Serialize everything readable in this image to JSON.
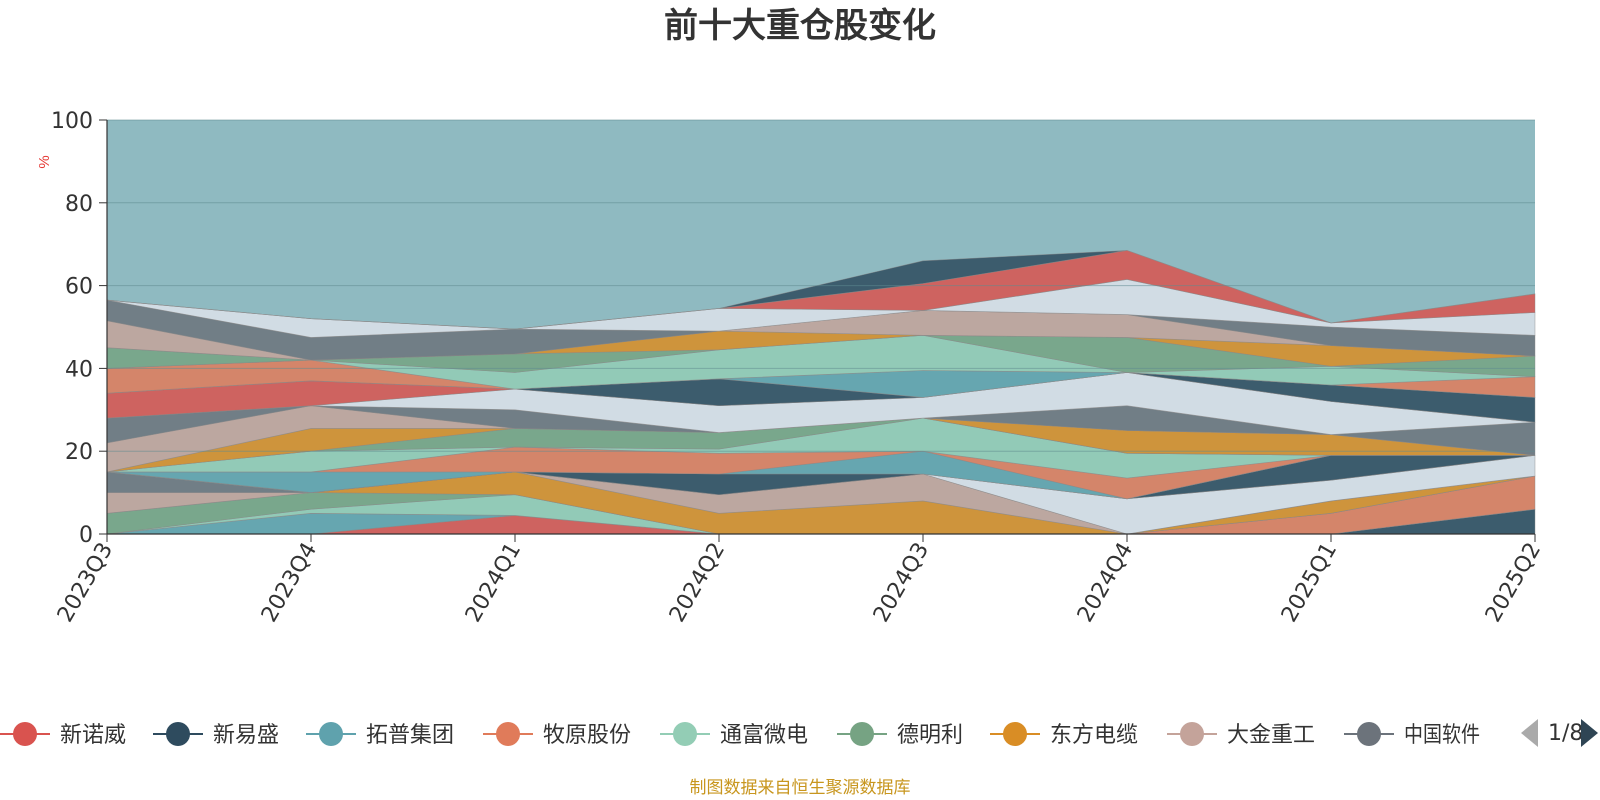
{
  "chart_data": {
    "type": "area",
    "title": "前十大重仓股变化",
    "ylabel": "%",
    "ylim": [
      0,
      100
    ],
    "yticks": [
      0,
      20,
      40,
      60,
      80,
      100
    ],
    "categories": [
      "2023Q3",
      "2023Q4",
      "2024Q1",
      "2024Q2",
      "2024Q3",
      "2024Q4",
      "2025Q1",
      "2025Q2"
    ],
    "stacked": true,
    "grid": true,
    "legend_position": "bottom",
    "series": [
      {
        "name": "新诺威",
        "color": "#d9534f",
        "values": [
          0,
          0,
          4.5,
          0,
          0,
          0,
          0,
          0
        ]
      },
      {
        "name": "新易盛",
        "color": "#2e4b5e",
        "values": [
          0,
          0,
          0,
          0,
          0,
          0,
          0,
          6
        ]
      },
      {
        "name": "拓普集团",
        "color": "#5fa2ad",
        "values": [
          0,
          5,
          0,
          0,
          0,
          0,
          0,
          0
        ]
      },
      {
        "name": "牧原股份",
        "color": "#e07b5a",
        "values": [
          0,
          0,
          0,
          0,
          0,
          0,
          5,
          8
        ]
      },
      {
        "name": "通富微电",
        "color": "#93cdb5",
        "values": [
          0,
          1,
          5,
          0,
          0,
          0,
          0,
          0
        ]
      },
      {
        "name": "德明利",
        "color": "#76a383",
        "values": [
          5,
          4,
          0,
          0,
          0,
          0,
          0,
          0
        ]
      },
      {
        "name": "东方电缆",
        "color": "#d98d25",
        "values": [
          0,
          0,
          5.5,
          5,
          8,
          0,
          3,
          0
        ]
      },
      {
        "name": "大金重工",
        "color": "#c4a39a",
        "values": [
          5,
          0,
          0,
          4.5,
          6.5,
          0,
          0,
          0
        ]
      },
      {
        "name": "中国软件",
        "color": "#6c737b",
        "values": [
          5,
          0,
          0,
          0,
          0,
          0,
          0,
          0
        ]
      }
    ],
    "other_bands_hidden_by_legend_paging": true
  },
  "legend": {
    "items": [
      {
        "label": "新诺威",
        "color": "#d9534f"
      },
      {
        "label": "新易盛",
        "color": "#2e4b5e"
      },
      {
        "label": "拓普集团",
        "color": "#5fa2ad"
      },
      {
        "label": "牧原股份",
        "color": "#e07b5a"
      },
      {
        "label": "通富微电",
        "color": "#93cdb5"
      },
      {
        "label": "德明利",
        "color": "#76a383"
      },
      {
        "label": "东方电缆",
        "color": "#d98d25"
      },
      {
        "label": "大金重工",
        "color": "#c4a39a"
      },
      {
        "label": "中国软件",
        "color": "#6c737b"
      }
    ],
    "page_indicator": "1/8"
  },
  "source_note": "制图数据来自恒生聚源数据库",
  "background_fill": "#8fbac1",
  "band_palette": [
    "#d9534f",
    "#2e4b5e",
    "#5fa2ad",
    "#e07b5a",
    "#93cdb5",
    "#76a383",
    "#d98d25",
    "#c4a39a",
    "#6c737b",
    "#dde2ea"
  ],
  "band_boundaries": [
    [
      0,
      0,
      0,
      0,
      0,
      0,
      0,
      0
    ],
    [
      0,
      0,
      4.5,
      0,
      0,
      0,
      0,
      0
    ],
    [
      0,
      0,
      4.5,
      0,
      0,
      0,
      0,
      6
    ],
    [
      0,
      5,
      4.5,
      0,
      0,
      0,
      0,
      6
    ],
    [
      0,
      5,
      4.5,
      0,
      0,
      0,
      5,
      14
    ],
    [
      0,
      6,
      9.5,
      0,
      0,
      0,
      5,
      14
    ],
    [
      5,
      10,
      9.5,
      0,
      0,
      0,
      5,
      14
    ],
    [
      5,
      10,
      15,
      5,
      8,
      0,
      8,
      14
    ],
    [
      10,
      10,
      15,
      9.5,
      14.5,
      0,
      8,
      14
    ],
    [
      15,
      10,
      15,
      9.5,
      14.5,
      0,
      8,
      14
    ],
    [
      15,
      10,
      15,
      9.5,
      14.5,
      8.5,
      13,
      19
    ],
    [
      15,
      10,
      15,
      9.5,
      14.5,
      8.5,
      13,
      19
    ],
    [
      15,
      10,
      15,
      14.5,
      14.5,
      8.5,
      19,
      19
    ],
    [
      15,
      15,
      15,
      14.5,
      20,
      8.5,
      19,
      19
    ],
    [
      15,
      15,
      21,
      19.5,
      20,
      13.5,
      19,
      19
    ],
    [
      15,
      20,
      21,
      20.5,
      28,
      19.5,
      19,
      19
    ],
    [
      15,
      20,
      25.5,
      24.5,
      28,
      19.5,
      19,
      19
    ],
    [
      15,
      25.5,
      25.5,
      24.5,
      28,
      25,
      24,
      19
    ],
    [
      22,
      31,
      25.5,
      24.5,
      28,
      25,
      24,
      19
    ],
    [
      28,
      31,
      30,
      24.5,
      28,
      31,
      24,
      27
    ],
    [
      28,
      31,
      35,
      31,
      33,
      39,
      32,
      27
    ],
    [
      34,
      37,
      35,
      31,
      33,
      39,
      32,
      27
    ],
    [
      34,
      37,
      35,
      37.5,
      33,
      39,
      36,
      33
    ],
    [
      34,
      37,
      35,
      37.5,
      39.5,
      39,
      36,
      33
    ],
    [
      40,
      42,
      35,
      37.5,
      39.5,
      39,
      36,
      38
    ],
    [
      40,
      42,
      39,
      44.5,
      48,
      39,
      40.5,
      38
    ],
    [
      45,
      42,
      43.5,
      44.5,
      48,
      47.5,
      40.5,
      43
    ],
    [
      45,
      42,
      43.5,
      49,
      48,
      47.5,
      45.5,
      43
    ],
    [
      51.5,
      42,
      43.5,
      49,
      54,
      53,
      45.5,
      43
    ],
    [
      56.5,
      47.5,
      49.5,
      49,
      54,
      53,
      50,
      48
    ],
    [
      56.5,
      52,
      49.5,
      54.5,
      54,
      61.5,
      51,
      53.5
    ],
    [
      56.5,
      52,
      49.5,
      54.5,
      60.5,
      68.5,
      51,
      58
    ],
    [
      56.5,
      52,
      49.5,
      54.5,
      66,
      68.5,
      51,
      58
    ]
  ]
}
